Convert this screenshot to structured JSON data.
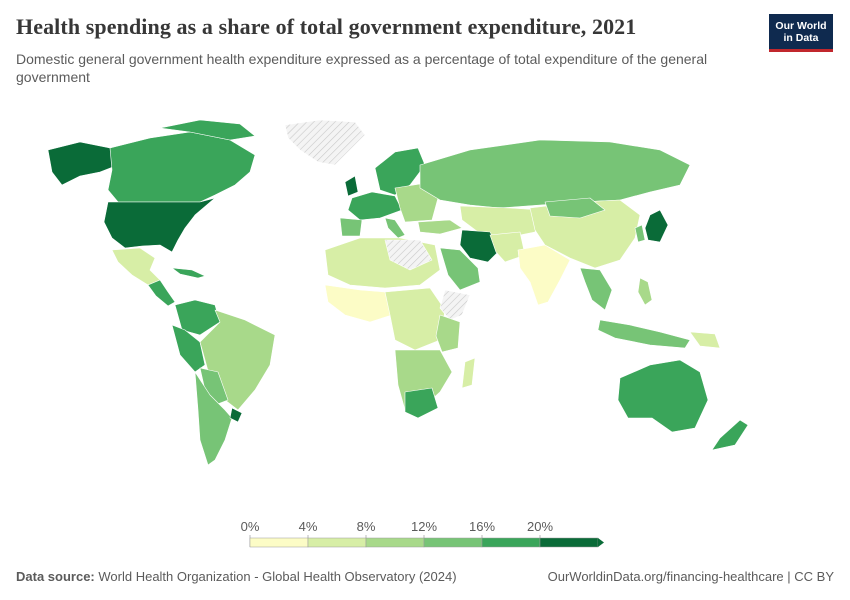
{
  "title": "Health spending as a share of total government expenditure, 2021",
  "subtitle": "Domestic general government health expenditure expressed as a percentage of total expenditure of the general government",
  "logo": {
    "line1": "Our World",
    "line2": "in Data"
  },
  "legend": {
    "ticks": [
      "0%",
      "4%",
      "8%",
      "12%",
      "16%",
      "20%"
    ],
    "colors": [
      "#fcfcc6",
      "#d7eea6",
      "#a8d98a",
      "#77c476",
      "#3aa55a",
      "#0a6b38"
    ],
    "no_data_pattern": "hatched"
  },
  "source_label": "Data source:",
  "source_text": "World Health Organization - Global Health Observatory (2024)",
  "footer_right": "OurWorldinData.org/financing-healthcare | CC BY",
  "palette": {
    "accent_red": "#c1272d",
    "logo_bg": "#0f2a4f"
  }
}
